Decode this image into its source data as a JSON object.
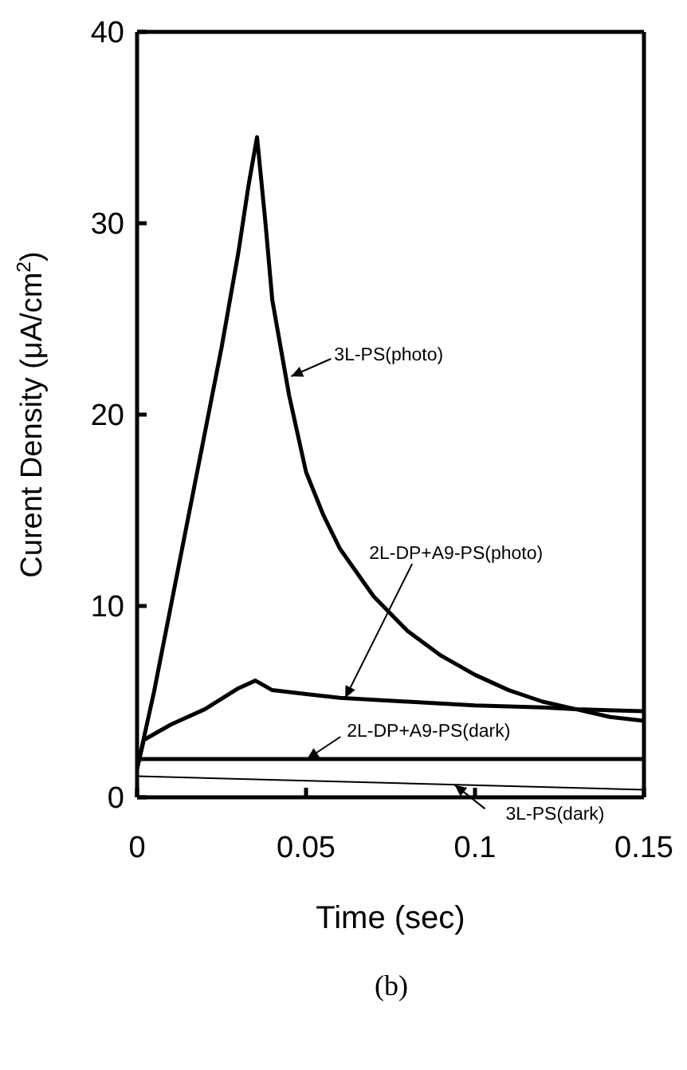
{
  "chart_data": {
    "type": "line",
    "xlabel": "Time (sec)",
    "ylabel": "Curent Density (μA/cm$^{2}$)",
    "xlim": [
      0,
      0.15
    ],
    "xticks": [
      0,
      0.05,
      0.1,
      0.15
    ],
    "ylim": [
      0,
      40
    ],
    "yticks": [
      0,
      10,
      20,
      30,
      40
    ],
    "marker": "none",
    "line_style": "solid",
    "series": [
      {
        "color": "#000000",
        "x": [
          0,
          0.005,
          0.01,
          0.015,
          0.02,
          0.025,
          0.03,
          0.033,
          0.0355,
          0.038,
          0.04,
          0.045,
          0.05,
          0.055,
          0.06,
          0.07,
          0.08,
          0.09,
          0.1,
          0.11,
          0.12,
          0.13,
          0.14,
          0.15
        ],
        "values": [
          1.5,
          5.5,
          10,
          14.5,
          19,
          23.5,
          28.5,
          32,
          34.5,
          30,
          26,
          21,
          17,
          14.8,
          13,
          10.5,
          8.7,
          7.4,
          6.4,
          5.6,
          5,
          4.6,
          4.2,
          4
        ]
      },
      {
        "color": "#000000",
        "x": [
          0,
          0.002,
          0.01,
          0.02,
          0.03,
          0.035,
          0.037,
          0.04,
          0.05,
          0.06,
          0.08,
          0.1,
          0.12,
          0.13,
          0.15
        ],
        "values": [
          1.5,
          3,
          3.8,
          4.6,
          5.7,
          6.1,
          5.9,
          5.6,
          5.4,
          5.2,
          5,
          4.8,
          4.7,
          4.6,
          4.5
        ]
      },
      {
        "color": "#000000",
        "x": [
          0,
          0.15
        ],
        "values": [
          2,
          2
        ]
      },
      {
        "color": "#000000",
        "x": [
          0,
          0.15
        ],
        "values": [
          1.1,
          0.4
        ]
      }
    ],
    "annotations": [
      {
        "text": "3L-PS(photo)",
        "x": 0.0456,
        "y": 22
      },
      {
        "text": "2L-DP+A9-PS(photo)",
        "x": 0.0616,
        "y": 5.2
      },
      {
        "text": "2L-DP+A9-PS(dark)",
        "x": 0.0503,
        "y": 2
      },
      {
        "text": "3L-PS(dark)",
        "x": 0.094,
        "y": 0.65
      },
      "(b)"
    ]
  }
}
